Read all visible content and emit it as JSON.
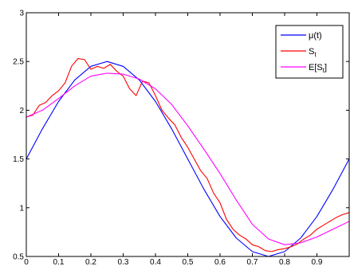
{
  "chart_data": {
    "type": "line",
    "xlim": [
      0,
      1
    ],
    "ylim": [
      0.5,
      3
    ],
    "xticks": [
      "0",
      "0.1",
      "0.2",
      "0.3",
      "0.4",
      "0.5",
      "0.6",
      "0.7",
      "0.8",
      "0.9"
    ],
    "yticks": [
      "0.5",
      "1",
      "1.5",
      "2",
      "2.5",
      "3"
    ],
    "legend_position": "top-right",
    "grid": false,
    "series": [
      {
        "name": "μ(t)",
        "legend_main": "μ(t)",
        "legend_sub": "",
        "legend_tail": "",
        "color": "#0000ff",
        "x": [
          0,
          0.05,
          0.1,
          0.15,
          0.2,
          0.25,
          0.3,
          0.35,
          0.4,
          0.45,
          0.5,
          0.55,
          0.6,
          0.65,
          0.7,
          0.75,
          0.8,
          0.85,
          0.9,
          0.95,
          1.0
        ],
        "y": [
          1.5,
          1.81,
          2.09,
          2.31,
          2.45,
          2.5,
          2.45,
          2.31,
          2.09,
          1.81,
          1.5,
          1.19,
          0.91,
          0.69,
          0.55,
          0.5,
          0.55,
          0.69,
          0.91,
          1.19,
          1.5
        ]
      },
      {
        "name": "St",
        "legend_main": "S",
        "legend_sub": "t",
        "legend_tail": "",
        "color": "#ff0000",
        "x": [
          0,
          0.02,
          0.04,
          0.06,
          0.08,
          0.1,
          0.12,
          0.14,
          0.16,
          0.18,
          0.2,
          0.22,
          0.24,
          0.26,
          0.28,
          0.3,
          0.32,
          0.34,
          0.36,
          0.38,
          0.4,
          0.42,
          0.44,
          0.46,
          0.48,
          0.5,
          0.52,
          0.54,
          0.56,
          0.58,
          0.6,
          0.62,
          0.64,
          0.66,
          0.68,
          0.7,
          0.72,
          0.74,
          0.76,
          0.78,
          0.8,
          0.82,
          0.84,
          0.86,
          0.88,
          0.9,
          0.92,
          0.94,
          0.96,
          0.98,
          1.0
        ],
        "y": [
          1.93,
          1.95,
          2.05,
          2.08,
          2.15,
          2.2,
          2.28,
          2.45,
          2.53,
          2.52,
          2.42,
          2.45,
          2.43,
          2.47,
          2.4,
          2.35,
          2.22,
          2.15,
          2.3,
          2.28,
          2.15,
          2.0,
          1.92,
          1.85,
          1.72,
          1.62,
          1.5,
          1.38,
          1.3,
          1.15,
          1.05,
          0.88,
          0.78,
          0.72,
          0.68,
          0.62,
          0.6,
          0.56,
          0.55,
          0.57,
          0.58,
          0.6,
          0.63,
          0.68,
          0.72,
          0.78,
          0.82,
          0.86,
          0.9,
          0.93,
          0.95
        ]
      },
      {
        "name": "E[St]",
        "legend_main": "E[S",
        "legend_sub": "t",
        "legend_tail": "]",
        "color": "#ff00ff",
        "x": [
          0,
          0.05,
          0.1,
          0.15,
          0.2,
          0.25,
          0.3,
          0.35,
          0.4,
          0.45,
          0.5,
          0.55,
          0.6,
          0.65,
          0.7,
          0.75,
          0.8,
          0.85,
          0.9,
          0.95,
          1.0
        ],
        "y": [
          1.93,
          2.0,
          2.12,
          2.25,
          2.35,
          2.38,
          2.37,
          2.32,
          2.22,
          2.06,
          1.84,
          1.6,
          1.35,
          1.08,
          0.83,
          0.68,
          0.62,
          0.64,
          0.7,
          0.78,
          0.86
        ]
      }
    ]
  }
}
